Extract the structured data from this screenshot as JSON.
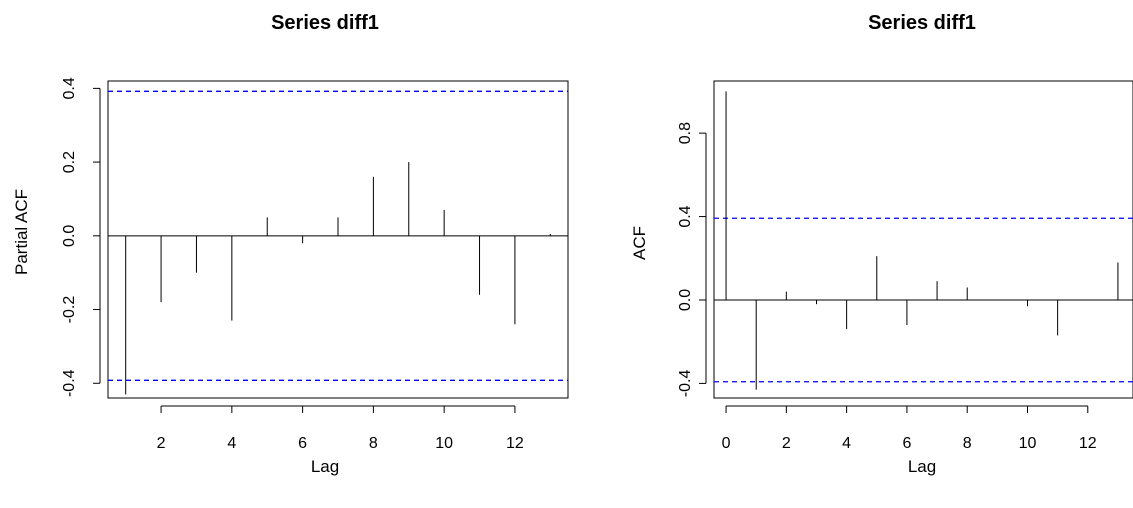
{
  "chart_data": [
    {
      "type": "bar",
      "title": "Series  diff1",
      "xlabel": "Lag",
      "ylabel": "Partial ACF",
      "xlim": [
        0.5,
        13.5
      ],
      "ylim": [
        -0.44,
        0.42
      ],
      "x_ticks": [
        2,
        4,
        6,
        8,
        10,
        12
      ],
      "y_ticks": [
        -0.4,
        -0.2,
        0.0,
        0.2,
        0.4
      ],
      "y_tick_labels": [
        "-0.4",
        "-0.2",
        "0.0",
        "0.2",
        "0.4"
      ],
      "confidence_bound": 0.392,
      "ci_color": "#0000ff",
      "lags": [
        1,
        2,
        3,
        4,
        5,
        6,
        7,
        8,
        9,
        10,
        11,
        12,
        13
      ],
      "values": [
        -0.43,
        -0.18,
        -0.1,
        -0.23,
        0.05,
        -0.02,
        0.05,
        0.16,
        0.2,
        0.07,
        -0.16,
        -0.24,
        0.005
      ]
    },
    {
      "type": "bar",
      "title": "Series  diff1",
      "xlabel": "Lag",
      "ylabel": "ACF",
      "xlim": [
        -0.4,
        13.5
      ],
      "ylim": [
        -0.47,
        1.05
      ],
      "x_ticks": [
        0,
        2,
        4,
        6,
        8,
        10,
        12
      ],
      "y_ticks": [
        -0.4,
        0.0,
        0.4,
        0.8
      ],
      "y_tick_labels": [
        "-0.4",
        "0.0",
        "0.4",
        "0.8"
      ],
      "confidence_bound": 0.392,
      "ci_color": "#0000ff",
      "lags": [
        0,
        1,
        2,
        3,
        4,
        5,
        6,
        7,
        8,
        9,
        10,
        11,
        12,
        13
      ],
      "values": [
        1.0,
        -0.43,
        0.04,
        -0.02,
        -0.14,
        0.21,
        -0.12,
        0.09,
        0.06,
        0.0,
        -0.03,
        -0.17,
        0.0,
        0.18
      ]
    }
  ]
}
